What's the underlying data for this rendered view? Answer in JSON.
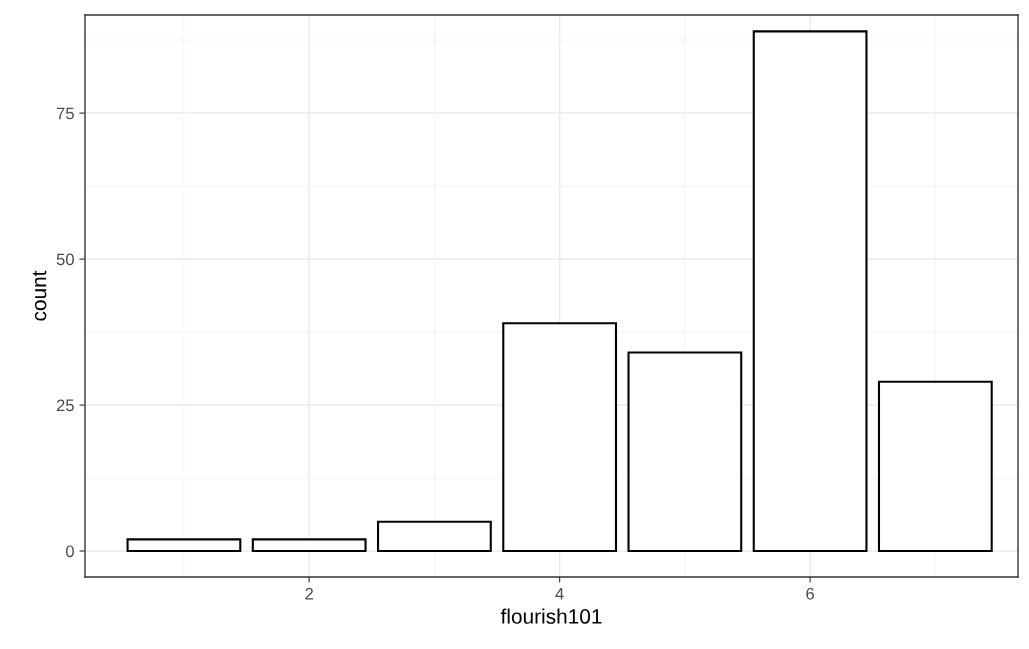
{
  "chart_data": {
    "type": "bar",
    "xlabel": "flourish101",
    "ylabel": "count",
    "x": [
      1,
      2,
      3,
      4,
      5,
      6,
      7
    ],
    "values": [
      2,
      2,
      5,
      39,
      34,
      89,
      29
    ],
    "color": "#ffffff",
    "xlim": [
      0.21,
      7.66
    ],
    "xticks": [
      2,
      4,
      6
    ],
    "ylim": [
      -4.45,
      91.8
    ],
    "yticks": [
      0,
      25,
      50,
      75
    ],
    "grid": true
  }
}
